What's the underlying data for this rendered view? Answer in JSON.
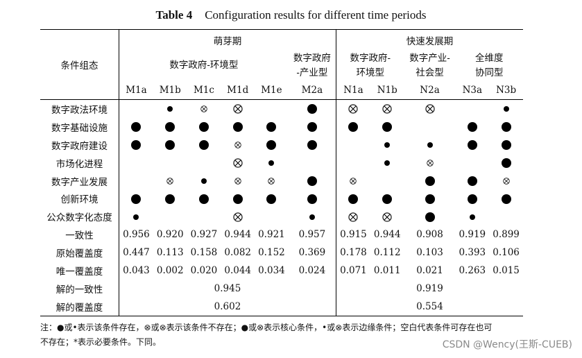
{
  "caption": {
    "label": "Table 4",
    "title": "Configuration results for different time periods"
  },
  "table": {
    "condition_header": "条件组态",
    "period1": "萌芽期",
    "period2": "快速发展期",
    "type_m1": "数字政府-环境型",
    "type_m2": [
      "数字政府",
      "-产业型"
    ],
    "type_n1": [
      "数字政府-",
      "环境型"
    ],
    "type_n2": [
      "数字产业-",
      "社会型"
    ],
    "type_n3": [
      "全维度",
      "协同型"
    ],
    "columns": [
      "M1a",
      "M1b",
      "M1c",
      "M1d",
      "M1e",
      "M2a",
      "N1a",
      "N1b",
      "N2a",
      "N3a",
      "N3b"
    ],
    "symbol_rows": [
      {
        "label": "数字政法环境",
        "cells": [
          "",
          "small",
          "smallx",
          "bigx",
          "",
          "big",
          "bigx",
          "bigx",
          "bigx",
          "",
          "small"
        ]
      },
      {
        "label": "数字基础设施",
        "cells": [
          "big",
          "big",
          "big",
          "big",
          "big",
          "big",
          "big",
          "big",
          "",
          "big",
          "big"
        ]
      },
      {
        "label": "数字政府建设",
        "cells": [
          "big",
          "big",
          "big",
          "smallx",
          "big",
          "big",
          "",
          "small",
          "small",
          "big",
          "big"
        ]
      },
      {
        "label": "市场化进程",
        "cells": [
          "",
          "",
          "",
          "bigx",
          "small",
          "",
          "",
          "small",
          "smallx",
          "",
          "big"
        ]
      },
      {
        "label": "数字产业发展",
        "cells": [
          "",
          "smallx",
          "small",
          "smallx",
          "smallx",
          "big",
          "smallx",
          "",
          "big",
          "big",
          "smallx"
        ]
      },
      {
        "label": "创新环境",
        "cells": [
          "big",
          "big",
          "big",
          "big",
          "big",
          "big",
          "big",
          "big",
          "big",
          "big",
          "big"
        ]
      },
      {
        "label": "公众数字化态度",
        "cells": [
          "small",
          "",
          "",
          "bigx",
          "",
          "small",
          "bigx",
          "bigx",
          "big",
          "small",
          ""
        ]
      }
    ],
    "numeric_rows": [
      {
        "label": "一致性",
        "cells": [
          "0.956",
          "0.920",
          "0.927",
          "0.944",
          "0.921",
          "0.957",
          "0.915",
          "0.944",
          "0.908",
          "0.919",
          "0.899"
        ]
      },
      {
        "label": "原始覆盖度",
        "cells": [
          "0.447",
          "0.113",
          "0.158",
          "0.082",
          "0.152",
          "0.369",
          "0.178",
          "0.112",
          "0.103",
          "0.393",
          "0.106"
        ]
      },
      {
        "label": "唯一覆盖度",
        "cells": [
          "0.043",
          "0.002",
          "0.020",
          "0.044",
          "0.034",
          "0.024",
          "0.071",
          "0.011",
          "0.021",
          "0.263",
          "0.015"
        ]
      }
    ],
    "solution_consistency": {
      "label": "解的一致性",
      "period1": "0.945",
      "period2": "0.919"
    },
    "solution_coverage": {
      "label": "解的覆盖度",
      "period1": "0.602",
      "period2": "0.554"
    }
  },
  "note": {
    "line1": "注：●或•表示该条件存在，⊗或⊗表示该条件不存在；●或⊗表示核心条件，•或⊗表示边缘条件；空白代表条件可存在也可",
    "line2": "不存在；*表示必要条件。下同。"
  },
  "watermark": "CSDN @Wency(王斯-CUEB)"
}
